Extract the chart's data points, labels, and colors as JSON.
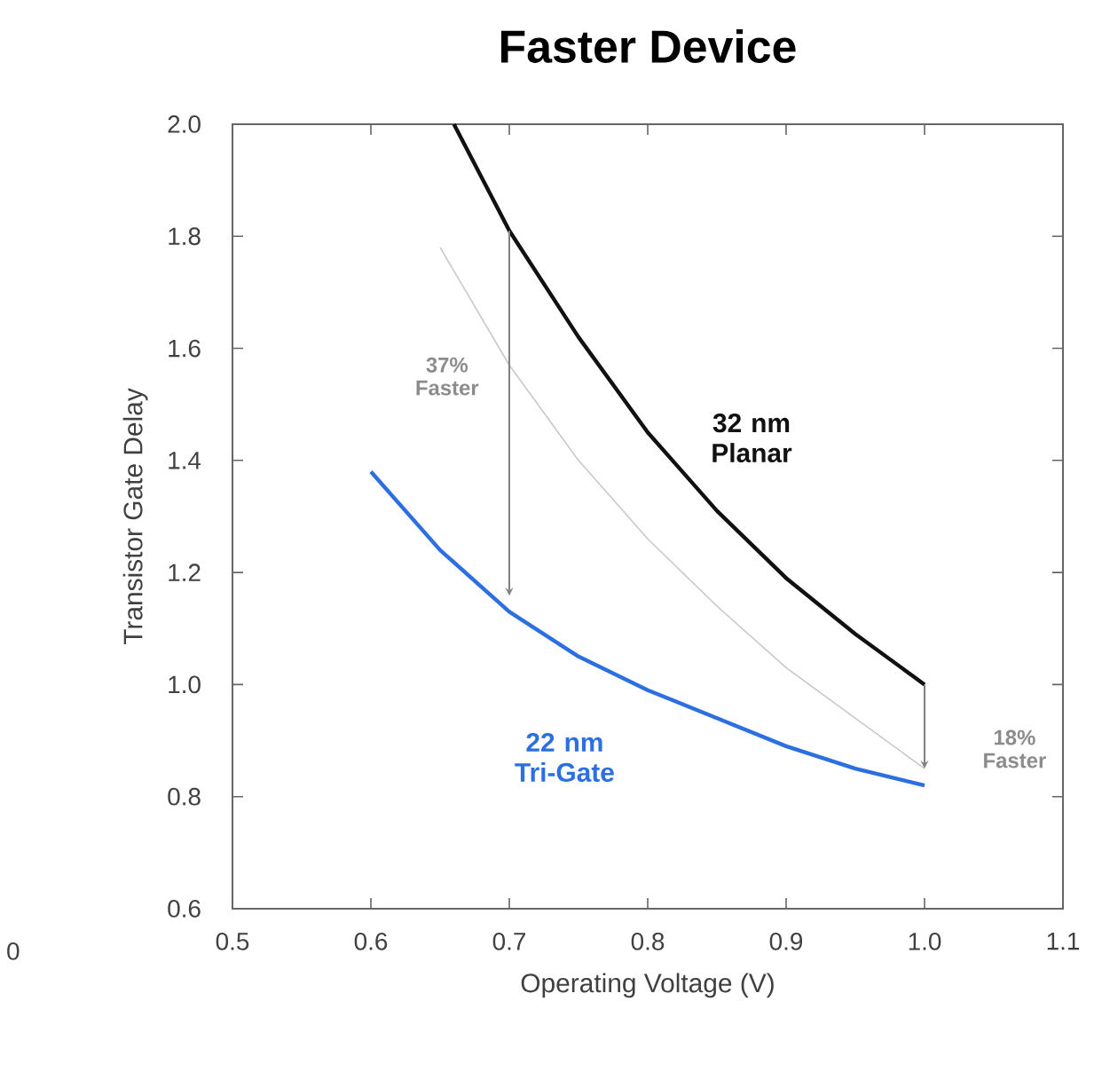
{
  "chart_data": {
    "type": "line",
    "title": "Faster Device",
    "xlabel": "Operating Voltage (V)",
    "ylabel": "Transistor  Gate Delay",
    "xlim": [
      0.5,
      1.1
    ],
    "ylim": [
      0.6,
      2.0
    ],
    "xticks": [
      0.5,
      0.6,
      0.7,
      0.8,
      0.9,
      {
        "value": 1.0,
        "label": "1.0"
      },
      1.1
    ],
    "yticks": [
      0.6,
      0.8,
      {
        "value": 1.0,
        "label": "1.0"
      },
      1.2,
      1.4,
      1.6,
      1.8,
      {
        "value": 2.0,
        "label": "2.0"
      }
    ],
    "grid": false,
    "legend": false,
    "marker": "none",
    "line_style": "solid",
    "series": [
      {
        "name": "32 nm Planar",
        "color": "#111111",
        "x": [
          0.66,
          0.7,
          0.75,
          0.8,
          0.85,
          0.9,
          0.95,
          1.0
        ],
        "values": [
          2.0,
          1.81,
          1.62,
          1.45,
          1.31,
          1.19,
          1.09,
          1.0
        ]
      },
      {
        "color": "#c8c8c8",
        "x": [
          0.65,
          0.7,
          0.75,
          0.8,
          0.85,
          0.9,
          0.95,
          1.0
        ],
        "values": [
          1.78,
          1.57,
          1.4,
          1.26,
          1.14,
          1.03,
          0.94,
          0.85
        ]
      },
      {
        "name": "22 nm Tri-Gate",
        "color": "#2b6fe0",
        "x": [
          0.6,
          0.65,
          0.7,
          0.75,
          0.8,
          0.85,
          0.9,
          0.95,
          1.0
        ],
        "values": [
          1.38,
          1.24,
          1.13,
          1.05,
          0.99,
          0.94,
          0.89,
          0.85,
          0.82
        ]
      }
    ],
    "annotations": [
      "37% Faster",
      "18% Faster",
      "0"
    ]
  }
}
